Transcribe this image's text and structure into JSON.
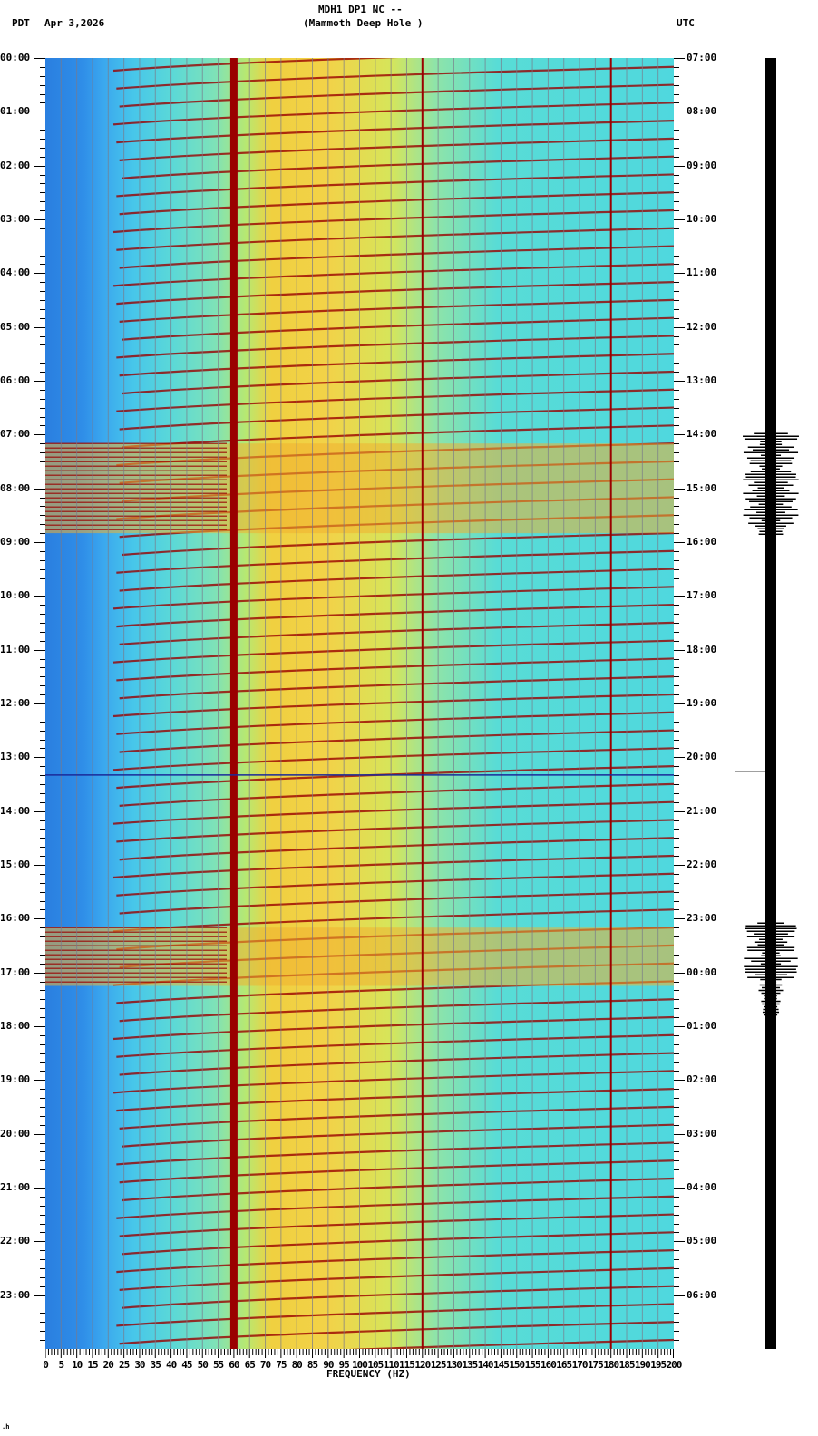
{
  "header": {
    "title": "MDH1 DP1 NC --",
    "subtitle": "(Mammoth Deep Hole )",
    "left_tz": "PDT",
    "date": "Apr 3,2026",
    "right_tz": "UTC"
  },
  "footer": {
    "mark": ".h"
  },
  "colors": {
    "low": "#2a7fe0",
    "mid": "#47e0e0",
    "high": "#f0d040",
    "peak": "#9a0000",
    "grid": "#7a7a8a"
  },
  "chart_data": {
    "type": "heatmap",
    "title": "MDH1 DP1 NC -- (Mammoth Deep Hole )",
    "xlabel": "FREQUENCY (HZ)",
    "ylabel_left": "PDT",
    "ylabel_right": "UTC",
    "xlim": [
      0,
      200
    ],
    "x_ticks": [
      "0",
      "5",
      "10",
      "15",
      "20",
      "25",
      "30",
      "35",
      "40",
      "45",
      "50",
      "55",
      "60",
      "65",
      "70",
      "75",
      "80",
      "85",
      "90",
      "95",
      "100",
      "105",
      "110",
      "115",
      "120",
      "125",
      "130",
      "135",
      "140",
      "145",
      "150",
      "155",
      "160",
      "165",
      "170",
      "175",
      "180",
      "185",
      "190",
      "195",
      "200"
    ],
    "y_ticks_left": [
      "00:00",
      "01:00",
      "02:00",
      "03:00",
      "04:00",
      "05:00",
      "06:00",
      "07:00",
      "08:00",
      "09:00",
      "10:00",
      "11:00",
      "12:00",
      "13:00",
      "14:00",
      "15:00",
      "16:00",
      "17:00",
      "18:00",
      "19:00",
      "20:00",
      "21:00",
      "22:00",
      "23:00"
    ],
    "y_ticks_right": [
      "07:00",
      "08:00",
      "09:00",
      "10:00",
      "11:00",
      "12:00",
      "13:00",
      "14:00",
      "15:00",
      "16:00",
      "17:00",
      "18:00",
      "19:00",
      "20:00",
      "21:00",
      "22:00",
      "23:00",
      "00:00",
      "01:00",
      "02:00",
      "03:00",
      "04:00",
      "05:00",
      "06:00"
    ],
    "persistent_lines_hz": [
      60,
      120,
      180
    ],
    "high_energy_bands_pdt": [
      {
        "start": "07:10",
        "end": "08:50",
        "note": "broadband event with strong dark red features"
      },
      {
        "start": "16:10",
        "end": "17:15",
        "note": "broadband event"
      }
    ],
    "seismogram": {
      "position": "right",
      "bursts_pdt": [
        "07:05-08:55",
        "16:10-17:10"
      ]
    }
  }
}
